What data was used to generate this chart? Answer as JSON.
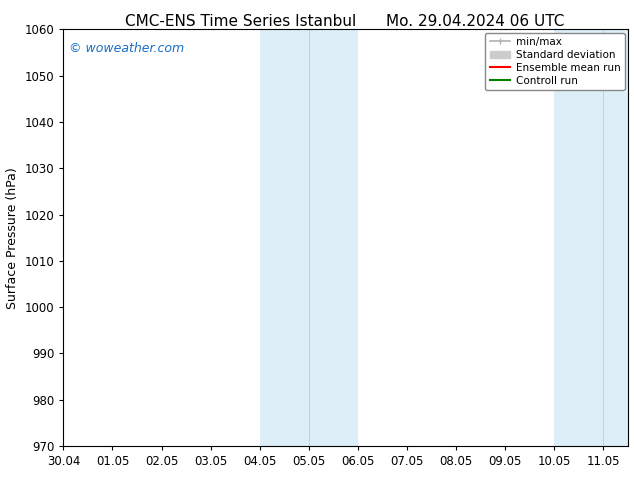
{
  "title_left": "CMC-ENS Time Series Istanbul",
  "title_right": "Mo. 29.04.2024 06 UTC",
  "ylabel": "Surface Pressure (hPa)",
  "ylim": [
    970,
    1060
  ],
  "yticks": [
    970,
    980,
    990,
    1000,
    1010,
    1020,
    1030,
    1040,
    1050,
    1060
  ],
  "xtick_labels": [
    "30.04",
    "01.05",
    "02.05",
    "03.05",
    "04.05",
    "05.05",
    "06.05",
    "07.05",
    "08.05",
    "09.05",
    "10.05",
    "11.05"
  ],
  "watermark": "© woweather.com",
  "watermark_color": "#1a6fc4",
  "bg_color": "#ffffff",
  "plot_bg_color": "#ffffff",
  "shaded_regions": [
    {
      "xstart": 4.0,
      "xend": 6.0,
      "color": "#ddeef8"
    },
    {
      "xstart": 10.0,
      "xend": 12.0,
      "color": "#ddeef8"
    }
  ],
  "shaded_inner_lines": [
    {
      "x": 5.0,
      "color": "#b8d4ea"
    },
    {
      "x": 11.0,
      "color": "#b8d4ea"
    }
  ],
  "legend_entries": [
    {
      "label": "min/max",
      "color": "#b0b0b0",
      "lw": 1.2
    },
    {
      "label": "Standard deviation",
      "color": "#cccccc",
      "lw": 6
    },
    {
      "label": "Ensemble mean run",
      "color": "#ff0000",
      "lw": 1.5
    },
    {
      "label": "Controll run",
      "color": "#008000",
      "lw": 1.5
    }
  ],
  "xmin": 0,
  "xmax": 11.5,
  "title_fontsize": 11,
  "axis_fontsize": 9,
  "tick_fontsize": 8.5,
  "legend_fontsize": 7.5
}
